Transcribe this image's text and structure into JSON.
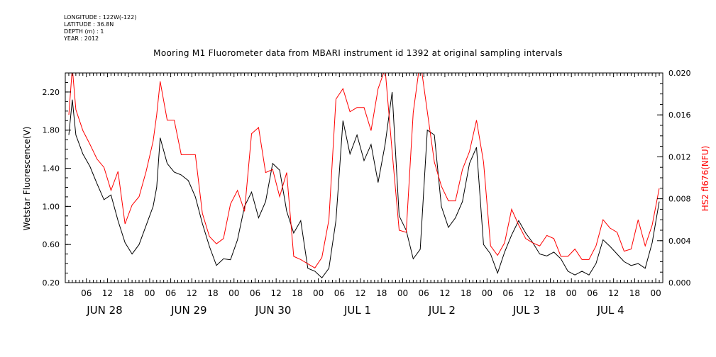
{
  "metadata": [
    {
      "label": "LONGITUDE",
      "value": "122W(-122)"
    },
    {
      "label": "LATITUDE",
      "value": "36.8N"
    },
    {
      "label": "DEPTH (m)",
      "value": "1"
    },
    {
      "label": "YEAR",
      "value": "2012"
    }
  ],
  "chart_data": {
    "type": "line",
    "title": "Mooring M1 Fluorometer data from MBARI instrument id 1392 at original sampling intervals",
    "xlabel": "",
    "ylabel": "Wetstar Fluorescence(V)",
    "y2label": "HS2 fl676(NFU)",
    "x_unit": "hours since JUN 28 00:00 2012",
    "xlim": [
      1,
      169
    ],
    "ylim": [
      0.2,
      2.4
    ],
    "y2lim": [
      0.0,
      0.02
    ],
    "y_ticks": [
      "0.20",
      "0.60",
      "1.00",
      "1.40",
      "1.80",
      "2.20"
    ],
    "y2_ticks": [
      "0.000",
      "0.004",
      "0.008",
      "0.012",
      "0.016",
      "0.020"
    ],
    "x_hour_ticks": [
      "06",
      "12",
      "18",
      "00",
      "06",
      "12",
      "18",
      "00",
      "06",
      "12",
      "18",
      "00",
      "06",
      "12",
      "18",
      "00",
      "06",
      "12",
      "18",
      "00",
      "06",
      "12",
      "18",
      "00",
      "06",
      "12",
      "18",
      "00"
    ],
    "day_labels": [
      "JUN 28",
      "JUN 29",
      "JUN 30",
      "JUL  1",
      "JUL  2",
      "JUL  3",
      "JUL  4"
    ],
    "series": [
      {
        "axis": "left",
        "color": "#000000",
        "x": [
          1,
          2,
          3,
          5,
          7,
          9,
          11,
          13,
          15,
          17,
          19,
          21,
          23,
          25,
          26,
          27,
          29,
          31,
          33,
          35,
          37,
          39,
          41,
          43,
          45,
          47,
          49,
          51,
          53,
          55,
          57,
          59,
          61,
          63,
          65,
          67,
          69,
          71,
          73,
          75,
          77,
          79,
          81,
          83,
          85,
          87,
          89,
          91,
          93,
          95,
          97,
          99,
          101,
          103,
          105,
          107,
          109,
          111,
          113,
          115,
          117,
          119,
          121,
          123,
          125,
          127,
          129,
          131,
          133,
          135,
          137,
          139,
          141,
          143,
          145,
          147,
          149,
          151,
          153,
          155,
          157,
          159,
          161,
          163,
          165,
          167,
          169
        ],
        "values": [
          1.75,
          2.12,
          1.75,
          1.55,
          1.42,
          1.24,
          1.07,
          1.12,
          0.85,
          0.62,
          0.5,
          0.6,
          0.8,
          1.0,
          1.2,
          1.72,
          1.45,
          1.36,
          1.33,
          1.27,
          1.1,
          0.82,
          0.58,
          0.38,
          0.45,
          0.44,
          0.65,
          1.0,
          1.15,
          0.88,
          1.05,
          1.45,
          1.38,
          0.95,
          0.72,
          0.85,
          0.35,
          0.32,
          0.25,
          0.35,
          0.85,
          1.9,
          1.55,
          1.75,
          1.48,
          1.65,
          1.25,
          1.65,
          2.2,
          0.9,
          0.75,
          0.45,
          0.55,
          1.8,
          1.75,
          1.0,
          0.78,
          0.88,
          1.05,
          1.45,
          1.62,
          0.6,
          0.5,
          0.3,
          0.52,
          0.7,
          0.85,
          0.72,
          0.62,
          0.5,
          0.48,
          0.52,
          0.45,
          0.32,
          0.28,
          0.32,
          0.28,
          0.4,
          0.65,
          0.58,
          0.5,
          0.42,
          0.38,
          0.4,
          0.35,
          0.62,
          1.05
        ]
      },
      {
        "axis": "right",
        "color": "#ff0000",
        "x": [
          1,
          2,
          3,
          5,
          7,
          9,
          11,
          13,
          15,
          17,
          19,
          21,
          23,
          25,
          26,
          27,
          29,
          31,
          33,
          35,
          37,
          39,
          41,
          43,
          45,
          47,
          49,
          51,
          53,
          55,
          57,
          59,
          61,
          63,
          65,
          67,
          69,
          71,
          73,
          75,
          77,
          79,
          81,
          83,
          85,
          87,
          89,
          91,
          93,
          95,
          97,
          99,
          101,
          103,
          105,
          107,
          109,
          111,
          113,
          115,
          117,
          119,
          121,
          123,
          125,
          127,
          129,
          131,
          133,
          135,
          137,
          139,
          141,
          143,
          145,
          147,
          149,
          151,
          153,
          155,
          157,
          159,
          161,
          163,
          165,
          167,
          169
        ],
        "values": [
          0.016,
          0.0205,
          0.0165,
          0.0145,
          0.0132,
          0.0118,
          0.011,
          0.0088,
          0.0106,
          0.0056,
          0.0074,
          0.0082,
          0.0106,
          0.0135,
          0.016,
          0.0192,
          0.0155,
          0.0155,
          0.0122,
          0.0122,
          0.0122,
          0.0066,
          0.0044,
          0.0037,
          0.0042,
          0.0075,
          0.0088,
          0.0068,
          0.0142,
          0.0148,
          0.0105,
          0.0108,
          0.0082,
          0.0105,
          0.0025,
          0.0022,
          0.0018,
          0.0014,
          0.0024,
          0.006,
          0.0175,
          0.0185,
          0.0163,
          0.0167,
          0.0167,
          0.0145,
          0.0185,
          0.0204,
          0.0125,
          0.005,
          0.0048,
          0.0162,
          0.0212,
          0.0163,
          0.0115,
          0.0092,
          0.0078,
          0.0078,
          0.0108,
          0.0125,
          0.0155,
          0.0115,
          0.0035,
          0.0026,
          0.0038,
          0.007,
          0.0055,
          0.0042,
          0.0038,
          0.0035,
          0.0045,
          0.0042,
          0.0025,
          0.0025,
          0.0032,
          0.0022,
          0.0022,
          0.0035,
          0.006,
          0.0052,
          0.0048,
          0.003,
          0.0032,
          0.006,
          0.0035,
          0.0055,
          0.009
        ]
      }
    ]
  }
}
